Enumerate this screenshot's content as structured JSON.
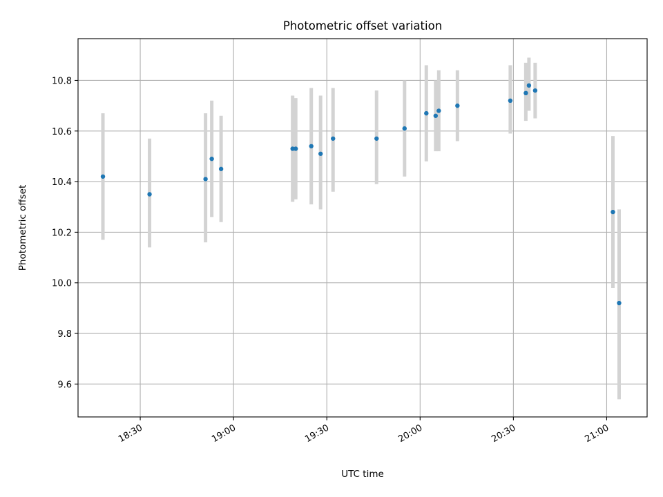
{
  "chart_data": {
    "type": "scatter",
    "title": "Photometric offset variation",
    "xlabel": "UTC time",
    "ylabel": "Photometric offset",
    "x_axis": "time",
    "xlim": [
      "18:10",
      "21:13"
    ],
    "ylim": [
      9.47,
      10.965
    ],
    "xticks": [
      "18:30",
      "19:00",
      "19:30",
      "20:00",
      "20:30",
      "21:00"
    ],
    "yticks": [
      9.6,
      9.8,
      10.0,
      10.2,
      10.4,
      10.6,
      10.8
    ],
    "ytick_labels": [
      "9.6",
      "9.8",
      "10.0",
      "10.2",
      "10.4",
      "10.6",
      "10.8"
    ],
    "grid": true,
    "legend": "none",
    "marker_color": "#1f77b4",
    "errorbar_color": "#d3d3d3",
    "points": [
      {
        "t": "18:18",
        "y": 10.42,
        "lo": 10.17,
        "hi": 10.67
      },
      {
        "t": "18:33",
        "y": 10.35,
        "lo": 10.14,
        "hi": 10.57
      },
      {
        "t": "18:51",
        "y": 10.41,
        "lo": 10.16,
        "hi": 10.67
      },
      {
        "t": "18:53",
        "y": 10.49,
        "lo": 10.26,
        "hi": 10.72
      },
      {
        "t": "18:56",
        "y": 10.45,
        "lo": 10.24,
        "hi": 10.66
      },
      {
        "t": "19:19",
        "y": 10.53,
        "lo": 10.32,
        "hi": 10.74
      },
      {
        "t": "19:20",
        "y": 10.53,
        "lo": 10.33,
        "hi": 10.73
      },
      {
        "t": "19:25",
        "y": 10.54,
        "lo": 10.31,
        "hi": 10.77
      },
      {
        "t": "19:28",
        "y": 10.51,
        "lo": 10.29,
        "hi": 10.74
      },
      {
        "t": "19:32",
        "y": 10.57,
        "lo": 10.36,
        "hi": 10.77
      },
      {
        "t": "19:46",
        "y": 10.57,
        "lo": 10.39,
        "hi": 10.76
      },
      {
        "t": "19:55",
        "y": 10.61,
        "lo": 10.42,
        "hi": 10.8
      },
      {
        "t": "20:02",
        "y": 10.67,
        "lo": 10.48,
        "hi": 10.86
      },
      {
        "t": "20:05",
        "y": 10.66,
        "lo": 10.52,
        "hi": 10.8
      },
      {
        "t": "20:06",
        "y": 10.68,
        "lo": 10.52,
        "hi": 10.84
      },
      {
        "t": "20:12",
        "y": 10.7,
        "lo": 10.56,
        "hi": 10.84
      },
      {
        "t": "20:29",
        "y": 10.72,
        "lo": 10.59,
        "hi": 10.86
      },
      {
        "t": "20:34",
        "y": 10.75,
        "lo": 10.64,
        "hi": 10.87
      },
      {
        "t": "20:35",
        "y": 10.78,
        "lo": 10.68,
        "hi": 10.89
      },
      {
        "t": "20:37",
        "y": 10.76,
        "lo": 10.65,
        "hi": 10.87
      },
      {
        "t": "21:02",
        "y": 10.28,
        "lo": 9.98,
        "hi": 10.58
      },
      {
        "t": "21:04",
        "y": 9.92,
        "lo": 9.54,
        "hi": 10.29
      }
    ]
  }
}
